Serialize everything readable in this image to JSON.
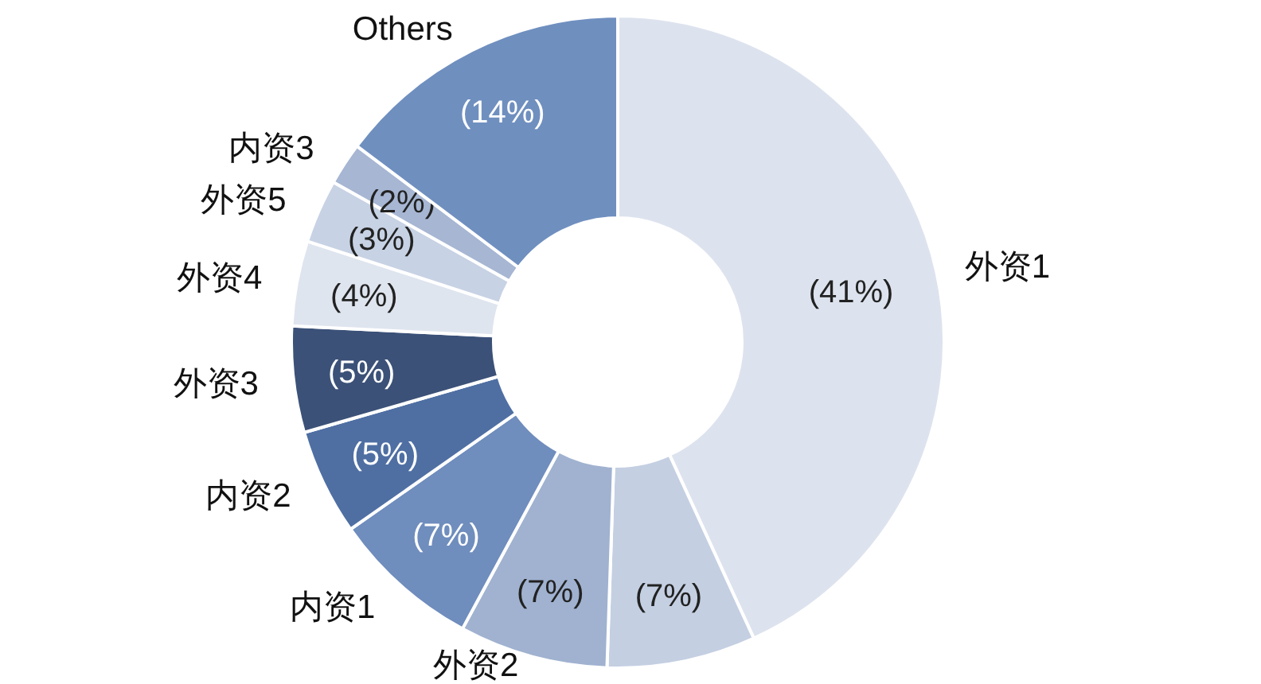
{
  "chart_data": {
    "type": "donut",
    "categories": [
      "外资1",
      null,
      "外资2",
      "内资1",
      "内资2",
      "外资3",
      "外资4",
      "外资5",
      "内资3",
      "Others"
    ],
    "values": [
      41,
      7,
      7,
      7,
      5,
      5,
      4,
      3,
      2,
      14
    ],
    "colors": [
      "#dde3ee",
      "#c4cfe2",
      "#a0b2d0",
      "#6f8dbd",
      "#4f6fa3",
      "#3b5178",
      "#dfe5ef",
      "#c7d2e4",
      "#a6b6d3",
      "#6f8fbf"
    ],
    "value_labels": [
      "(41%)",
      "(7%)",
      "(7%)",
      "(7%)",
      "(5%)",
      "(5%)",
      "(4%)",
      "(3%)",
      "(2%)",
      "(14%)"
    ]
  }
}
